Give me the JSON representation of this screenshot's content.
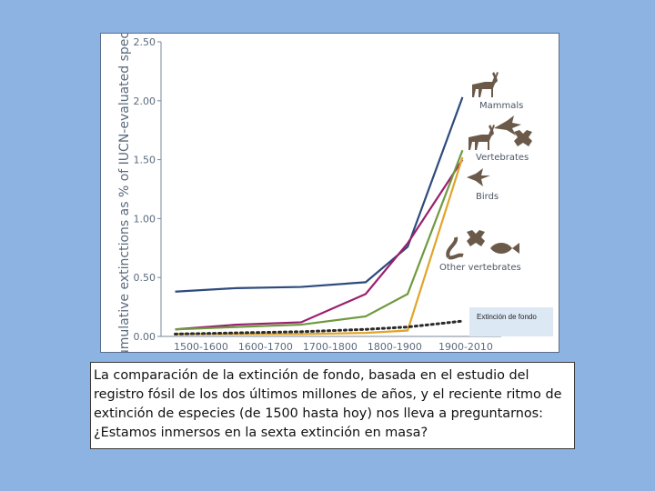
{
  "chart_data": {
    "type": "line",
    "ylabel": "Cumulative extinctions as % of IUCN-evaluated species",
    "xlabel": "",
    "categories": [
      "1500-1600",
      "1600-1700",
      "1700-1800",
      "1800-1900",
      "1900-2010"
    ],
    "y_ticks": [
      "0.00",
      "0.50",
      "1.00",
      "1.50",
      "2.00",
      "2.50"
    ],
    "ylim": [
      0,
      2.5
    ],
    "x": [
      1505,
      1600,
      1700,
      1800,
      1865,
      1950
    ],
    "series": [
      {
        "name": "Mammals",
        "color": "#2e4b7c",
        "values": [
          0.38,
          0.41,
          0.42,
          0.46,
          0.76,
          2.03
        ]
      },
      {
        "name": "Birds",
        "color": "#9a1f6e",
        "values": [
          0.06,
          0.1,
          0.12,
          0.36,
          0.79,
          1.5
        ]
      },
      {
        "name": "Vertebrates",
        "color": "#6f9a3e",
        "values": [
          0.06,
          0.08,
          0.1,
          0.17,
          0.36,
          1.58
        ]
      },
      {
        "name": "Other vertebrates",
        "color": "#e0a52a",
        "values": [
          0.02,
          0.02,
          0.02,
          0.03,
          0.05,
          1.52
        ]
      },
      {
        "name": "",
        "color": "#2a2a2a",
        "style": "dotted",
        "values": [
          0.02,
          0.03,
          0.04,
          0.06,
          0.08,
          0.13
        ]
      }
    ]
  },
  "labels": {
    "background_extinction": "Extinción de fondo"
  },
  "icons": [
    "deer-icon",
    "bird-icon",
    "frog-icon",
    "snake-icon",
    "fish-icon"
  ],
  "caption": {
    "text": "La comparación de la extinción de fondo, basada en el estudio del registro fósil de los dos últimos millones de años, y el reciente ritmo de extinción de especies (de 1500 hasta hoy) nos lleva a preguntarnos: ¿Estamos inmersos en la sexta extinción en masa?"
  }
}
